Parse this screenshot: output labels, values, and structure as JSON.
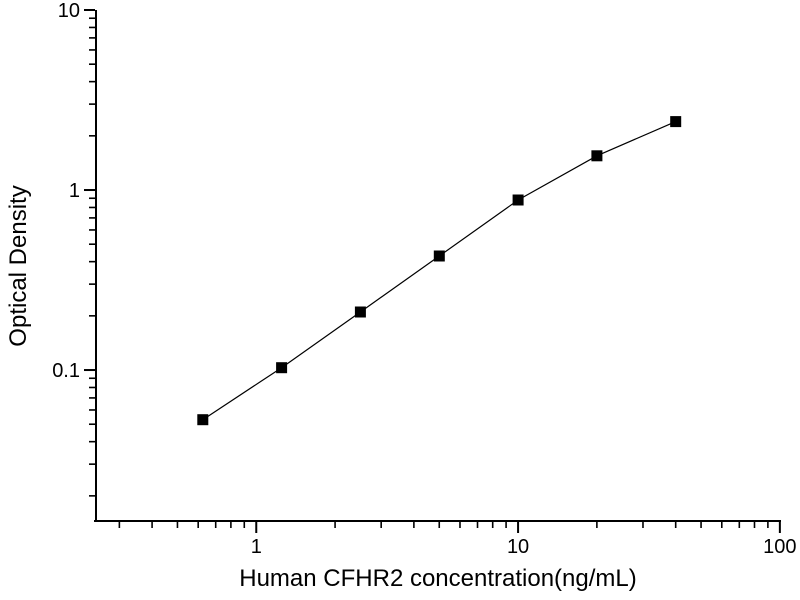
{
  "figure": {
    "background": "#ffffff",
    "foreground": "#000000"
  },
  "chart_data": {
    "type": "scatter",
    "title": "",
    "xlabel": "Human CFHR2 concentration(ng/mL)",
    "ylabel": "Optical Density",
    "x_scale": "log",
    "y_scale": "log",
    "x": [
      0.625,
      1.25,
      2.5,
      5,
      10,
      20,
      40
    ],
    "y": [
      0.053,
      0.103,
      0.21,
      0.43,
      0.88,
      1.55,
      2.4
    ],
    "marker": "filled-square",
    "marker_size": 11,
    "line_style": "solid",
    "line_width": 1.2,
    "color": "#000000",
    "xlim": [
      0.24,
      101
    ],
    "ylim": [
      0.0145,
      10
    ],
    "x_major_ticks": [
      1,
      10,
      100
    ],
    "x_major_labels": [
      "1",
      "10",
      "100"
    ],
    "x_minor_ticks": [
      0.3,
      0.4,
      0.5,
      0.6,
      0.7,
      0.8,
      0.9,
      2,
      3,
      4,
      5,
      6,
      7,
      8,
      9,
      20,
      30,
      40,
      50,
      60,
      70,
      80,
      90
    ],
    "y_major_ticks": [
      10,
      1,
      0.1
    ],
    "y_major_labels": [
      "10",
      "1",
      "0.1"
    ],
    "y_minor_ticks": [
      9,
      8,
      7,
      6,
      5,
      4,
      3,
      2,
      0.9,
      0.8,
      0.7,
      0.6,
      0.5,
      0.4,
      0.3,
      0.2,
      0.09,
      0.08,
      0.07,
      0.06,
      0.05,
      0.04,
      0.03,
      0.02
    ],
    "grid": "off",
    "legend": "none",
    "tick_direction": "out"
  }
}
